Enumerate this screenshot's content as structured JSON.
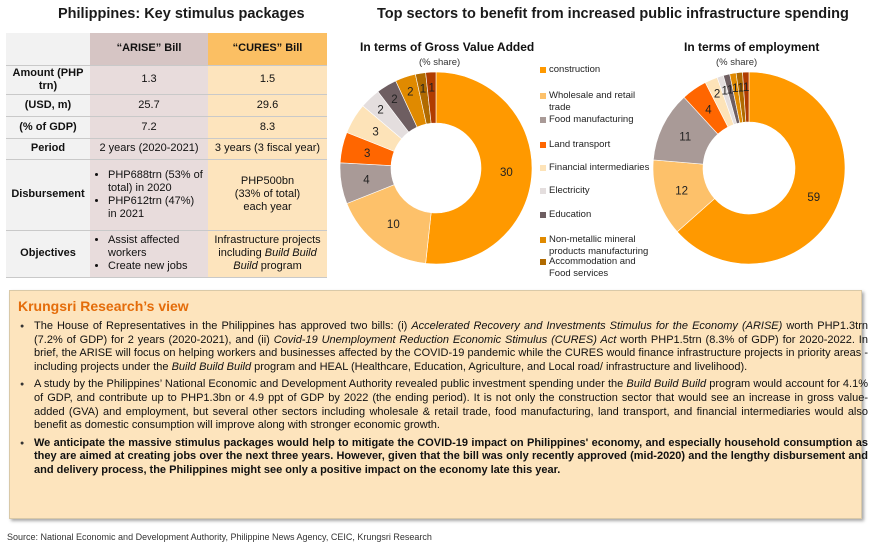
{
  "left_title": "Philippines: Key stimulus packages",
  "table": {
    "headers": [
      "",
      "“ARISE” Bill",
      "“CURES” Bill"
    ],
    "rows": [
      {
        "label": "Amount (PHP trn)",
        "arise": "1.3",
        "cures": "1.5"
      },
      {
        "label": "(USD, m)",
        "arise": "25.7",
        "cures": "29.6"
      },
      {
        "label": "(% of GDP)",
        "arise": "7.2",
        "cures": "8.3"
      },
      {
        "label": "Period",
        "arise": "2 years (2020-2021)",
        "cures": "3 years (3 fiscal year)"
      }
    ],
    "disbursement": {
      "label": "Disbursement",
      "arise": [
        "PHP688trn (53% of total) in 2020",
        "PHP612trn  (47%) in 2021"
      ],
      "cures": [
        "PHP500bn",
        "(33% of total)",
        "each year"
      ]
    },
    "objectives": {
      "label": "Objectives",
      "arise": [
        "Assist affected workers",
        "Create new jobs"
      ],
      "cures_pre": "Infrastructure projects including ",
      "cures_em": "Build Build Build",
      "cures_post": " program"
    }
  },
  "right_title": "Top sectors to benefit from increased public infrastructure spending",
  "chart_data": [
    {
      "type": "pie",
      "variant": "donut",
      "title": "In terms of Gross Value Added",
      "subtitle": "(% share)",
      "categories": [
        "construction",
        "Wholesale and retail trade",
        "Food manufacturing",
        "Land transport",
        "Financial intermediaries",
        "Electricity",
        "Education",
        "Non-metallic mineral products manufacturing",
        "Accommodation and Food services",
        "(unlabeled)"
      ],
      "values": [
        30,
        10,
        4,
        3,
        3,
        2,
        2,
        2,
        1,
        1
      ],
      "colors": [
        "#ff9900",
        "#fdc16a",
        "#a99a97",
        "#ff6600",
        "#fde3b8",
        "#e4dede",
        "#6e5e61",
        "#e08a00",
        "#b06a00",
        "#b03c00"
      ],
      "legend_position": "right"
    },
    {
      "type": "pie",
      "variant": "donut",
      "title": "In terms of employment",
      "subtitle": "(% share)",
      "categories": [
        "construction",
        "Wholesale and retail trade",
        "Food manufacturing",
        "Land transport",
        "Financial intermediaries",
        "Electricity",
        "Education",
        "Non-metallic mineral products manufacturing",
        "Accommodation and Food services",
        "(unlabeled)"
      ],
      "values": [
        59,
        12,
        11,
        4,
        2,
        1,
        1,
        1,
        1,
        1
      ],
      "colors": [
        "#ff9900",
        "#fdc16a",
        "#a99a97",
        "#ff6600",
        "#fde3b8",
        "#e4dede",
        "#6e5e61",
        "#e08a00",
        "#b06a00",
        "#b03c00"
      ],
      "legend_position": "none"
    }
  ],
  "legend": [
    {
      "label": "construction",
      "color": "#ff9900"
    },
    {
      "label": "Wholesale and retail trade",
      "color": "#fdc16a"
    },
    {
      "label": "Food manufacturing",
      "color": "#a99a97"
    },
    {
      "label": "Land transport",
      "color": "#ff6600"
    },
    {
      "label": "Financial intermediaries",
      "color": "#fde3b8"
    },
    {
      "label": "Electricity",
      "color": "#e4dede"
    },
    {
      "label": "Education",
      "color": "#6e5e61"
    },
    {
      "label": "Non-metallic mineral products manufacturing",
      "color": "#e08a00"
    },
    {
      "label": "Accommodation and Food services",
      "color": "#b06a00"
    }
  ],
  "research": {
    "title": "Krungsri Research’s view",
    "bullet1": {
      "t1": "The House of Representatives in the Philippines has approved two bills: (i) ",
      "i1": "Accelerated Recovery and Investments Stimulus for the Economy (ARISE)",
      "t2": " worth PHP1.3trn (7.2% of GDP) for 2 years (2020-2021), and (ii) ",
      "i2": "Covid-19 Unemployment Reduction Economic Stimulus (CURES) Act",
      "t3": " worth PHP1.5trn (8.3% of GDP) for 2020-2022. In brief, the ARISE will focus on helping workers and businesses affected by the COVID-19 pandemic while the CURES would finance infrastructure projects in priority areas - including projects under the ",
      "i3": "Build Build Build",
      "t4": " program and HEAL (Healthcare, Education, Agriculture, and Local road/ infrastructure and livelihood)."
    },
    "bullet2": {
      "t1": "A study by the Philippines’ National Economic and Development Authority revealed public investment spending under the ",
      "i1": "Build Build Build",
      "t2": " program would account for 4.1% of GDP, and contribute up to PHP1.3bn or 4.9 ppt of GDP by 2022 (the ending period). It is not only the construction sector that would see an increase in gross value-added (GVA) and employment, but several other sectors including wholesale & retail trade, food manufacturing, land transport, and financial intermediaries would also benefit as domestic consumption will improve along with stronger economic growth."
    },
    "bullet3": "We anticipate the massive stimulus packages would help to mitigate the COVID-19 impact on Philippines' economy, and especially household consumption as they are aimed at creating jobs over the next three years. However, given that the bill was only recently approved (mid-2020) and the lengthy disbursement and and delivery process, the Philippines might see only a positive impact on the economy late this year."
  },
  "source": "Source: National Economic and Development Authority, Philippine News Agency, CEIC, Krungsri Research"
}
